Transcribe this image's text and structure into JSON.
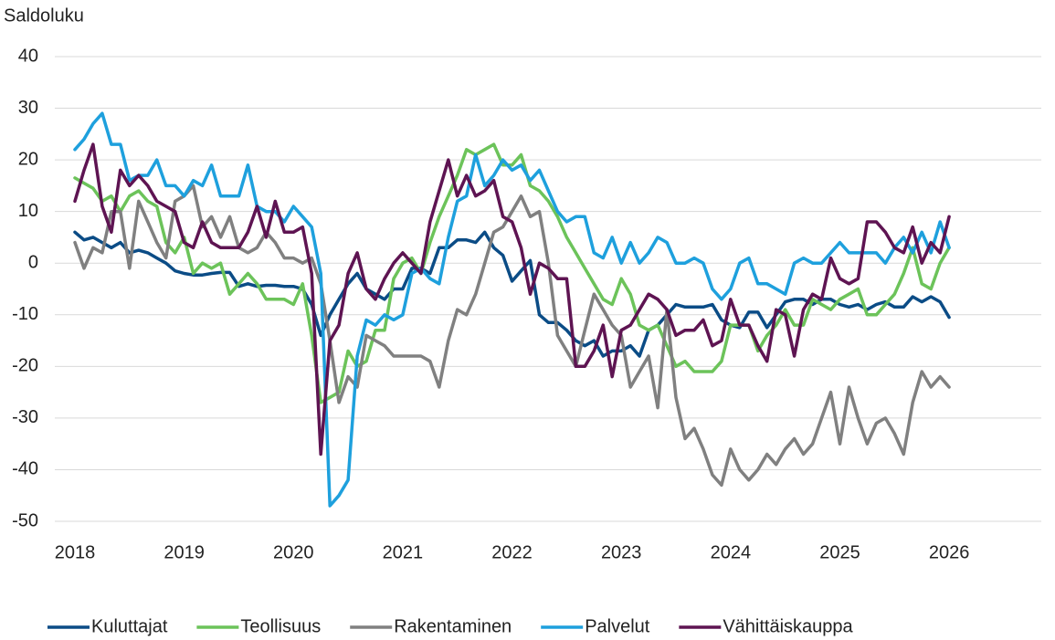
{
  "chart_data": {
    "type": "line",
    "y_label": "Saldoluku",
    "categories": [
      "2018",
      null,
      null,
      null,
      null,
      null,
      null,
      null,
      null,
      null,
      null,
      null,
      "2019",
      null,
      null,
      null,
      null,
      null,
      null,
      null,
      null,
      null,
      null,
      null,
      "2020",
      null,
      null,
      null,
      null,
      null,
      null,
      null,
      null,
      null,
      null,
      null,
      "2021",
      null,
      null,
      null,
      null,
      null,
      null,
      null,
      null,
      null,
      null,
      null,
      "2022",
      null,
      null,
      null,
      null,
      null,
      null,
      null,
      null,
      null,
      null,
      null,
      "2023",
      null,
      null,
      null,
      null,
      null,
      null,
      null,
      null,
      null,
      null,
      null,
      "2024",
      null,
      null,
      null,
      null,
      null,
      null,
      null,
      null,
      null,
      null,
      null,
      "2025",
      null,
      null,
      null,
      null,
      null,
      null,
      null,
      null,
      null,
      null,
      null,
      "2026"
    ],
    "ylim": [
      -50,
      40
    ],
    "yticks": [
      -50,
      -40,
      -30,
      -20,
      -10,
      0,
      10,
      20,
      30,
      40
    ],
    "grid": true,
    "legend": "bottom",
    "series": [
      {
        "name": "Kuluttajat",
        "color": "#0b4c86",
        "values": [
          6,
          4.5,
          5,
          4,
          3,
          4,
          2,
          2.5,
          2,
          1,
          0,
          -1.5,
          -2,
          -2.3,
          -2.3,
          -2,
          -1.8,
          -1.8,
          -4.5,
          -4,
          -4.5,
          -4.3,
          -4.3,
          -4.5,
          -4.5,
          -5,
          -8,
          -14,
          -10,
          -7,
          -4,
          -2,
          -5,
          -6,
          -7,
          -5,
          -5,
          -1,
          -1,
          -2,
          3,
          3,
          4.5,
          4.5,
          4,
          6,
          3,
          1.5,
          -3.5,
          -1.5,
          0.5,
          -10,
          -11.5,
          -11.5,
          -13,
          -15,
          -16,
          -15,
          -18,
          -17,
          -17,
          -16,
          -18,
          -13,
          -12,
          -10,
          -8,
          -8.5,
          -8.5,
          -8.5,
          -8,
          -11,
          -12,
          -12.5,
          -9.5,
          -9.5,
          -12.5,
          -10,
          -7.5,
          -7,
          -7,
          -8,
          -7,
          -7,
          -8,
          -8.5,
          -8,
          -9,
          -8,
          -7.5,
          -8.5,
          -8.5,
          -6.5,
          -7.5,
          -6.5,
          -7.5,
          -10.5
        ]
      },
      {
        "name": "Teollisuus",
        "color": "#6cc35a",
        "values": [
          16.5,
          15.5,
          14.5,
          12,
          13,
          10,
          13,
          14,
          12,
          11,
          4,
          2,
          5,
          -2,
          0,
          -1,
          0,
          -6,
          -4,
          -2,
          -4,
          -7,
          -7,
          -7,
          -8,
          -4,
          -14,
          -27,
          -26,
          -25,
          -17,
          -20,
          -19,
          -13,
          -13,
          -3,
          0,
          1,
          -2,
          4,
          9,
          13,
          17,
          22,
          21,
          22,
          23,
          19,
          19,
          21,
          15,
          14,
          12,
          9,
          5,
          2,
          -1,
          -4,
          -7,
          -8,
          -3,
          -6,
          -12,
          -13,
          -12,
          -16,
          -20,
          -19,
          -21,
          -21,
          -21,
          -19,
          -12,
          -12,
          -12,
          -17,
          -14,
          -12,
          -9,
          -12,
          -12,
          -7,
          -8,
          -9,
          -7,
          -6,
          -5,
          -10,
          -10,
          -8,
          -6,
          -2,
          3,
          -4,
          -5,
          0,
          3
        ]
      },
      {
        "name": "Rakentaminen",
        "color": "#808080",
        "values": [
          4,
          -1,
          3,
          2,
          10,
          10,
          -1,
          12,
          8,
          4,
          1,
          12,
          13,
          15,
          7,
          9,
          5,
          9,
          3,
          2,
          3,
          6,
          4,
          1,
          1,
          0,
          1,
          -4,
          -15,
          -27,
          -22,
          -24,
          -14,
          -15,
          -16,
          -18,
          -18,
          -18,
          -18,
          -19,
          -24,
          -15,
          -9,
          -10,
          -6,
          0,
          6,
          7,
          10,
          13,
          9,
          10,
          0,
          -14,
          -17,
          -20,
          -13,
          -6,
          -9,
          -12,
          -14,
          -24,
          -21,
          -18,
          -28,
          -9,
          -26,
          -34,
          -32,
          -36,
          -41,
          -43,
          -36,
          -40,
          -42,
          -40,
          -37,
          -39,
          -36,
          -34,
          -37,
          -35,
          -30,
          -25,
          -35,
          -24,
          -30,
          -35,
          -31,
          -30,
          -33,
          -37,
          -27,
          -21,
          -24,
          -22,
          -24
        ]
      },
      {
        "name": "Palvelut",
        "color": "#1ea0dd",
        "values": [
          22,
          24,
          27,
          29,
          23,
          23,
          16,
          17,
          17,
          20,
          15,
          15,
          13,
          16,
          15,
          19,
          13,
          13,
          13,
          19,
          11,
          10,
          10,
          8,
          11,
          9,
          7,
          -2,
          -47,
          -45,
          -42,
          -18,
          -11,
          -12,
          -10,
          -11,
          -10,
          -2,
          -1,
          -3,
          -4,
          5,
          12,
          13,
          21,
          15,
          17,
          20,
          18,
          19,
          16,
          18,
          14,
          10,
          8,
          9,
          9,
          2,
          1,
          5,
          0,
          4,
          0,
          2,
          5,
          4,
          0,
          0,
          1,
          0,
          -5,
          -7,
          -5,
          0,
          1,
          -4,
          -4,
          -5,
          -6,
          0,
          1,
          0,
          0,
          2,
          4,
          2,
          2,
          2,
          2,
          0,
          3,
          5,
          2,
          6,
          2,
          8,
          3
        ]
      },
      {
        "name": "Vähittäiskauppa",
        "color": "#5e1452",
        "values": [
          12,
          18,
          23,
          11,
          6,
          18,
          15,
          17,
          15,
          12,
          11,
          10,
          4,
          3,
          8,
          4,
          3,
          3,
          3,
          6,
          11,
          5,
          12,
          6,
          6,
          7,
          -2,
          -37,
          -15,
          -12,
          -2,
          2,
          -5,
          -7,
          -3,
          0,
          2,
          0,
          -2,
          8,
          14,
          20,
          13,
          17,
          13,
          14,
          16,
          9,
          8,
          3,
          -6,
          0,
          -1,
          -3,
          -3,
          -20,
          -20,
          -17,
          -12,
          -22,
          -13,
          -12,
          -9,
          -6,
          -7,
          -9,
          -14,
          -13,
          -13,
          -11,
          -16,
          -15,
          -7,
          -12,
          -12,
          -16,
          -19,
          -9,
          -10,
          -18,
          -9,
          -6,
          -7,
          1,
          -3,
          -4,
          -3,
          8,
          8,
          6,
          3,
          2,
          7,
          0,
          4,
          2,
          9
        ]
      }
    ]
  }
}
